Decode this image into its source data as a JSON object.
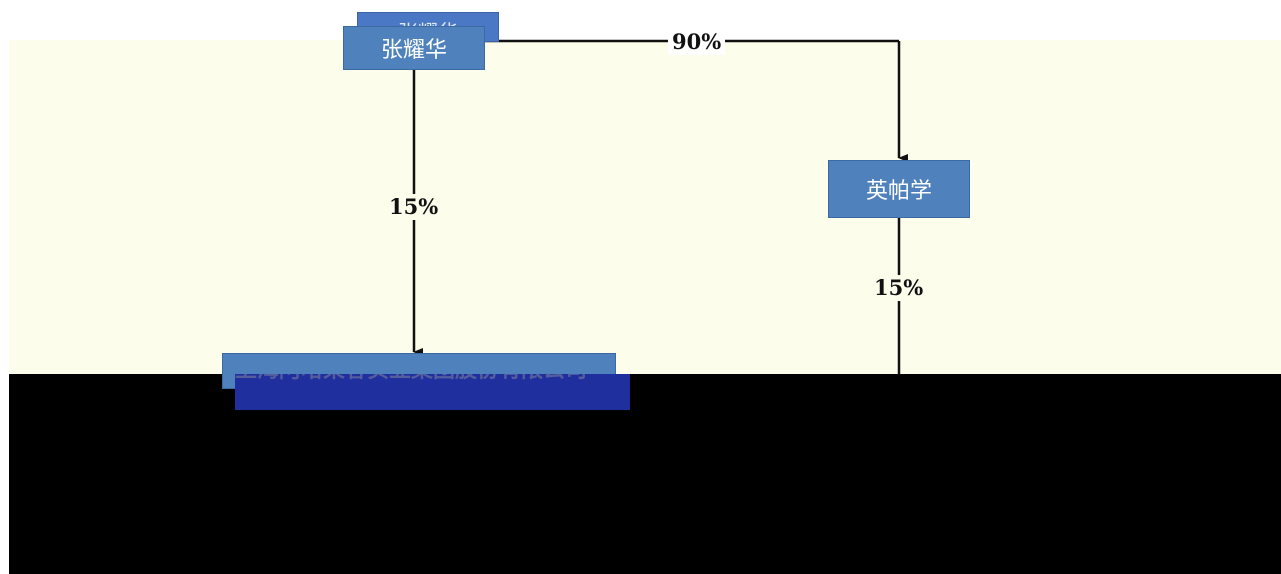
{
  "diagram": {
    "nodes": {
      "person_top": "张耀华",
      "person_ghost": "张耀华",
      "person_right": "英帕学",
      "company": "上海阿哈莱客实业集团股份有限公司"
    },
    "edges": {
      "top_to_right": "90%",
      "top_to_company": "15%",
      "right_to_down": "15%"
    },
    "colors": {
      "node_fill": "#4f81bd",
      "panel_bg": "#fcfdea",
      "line": "#111111"
    }
  }
}
